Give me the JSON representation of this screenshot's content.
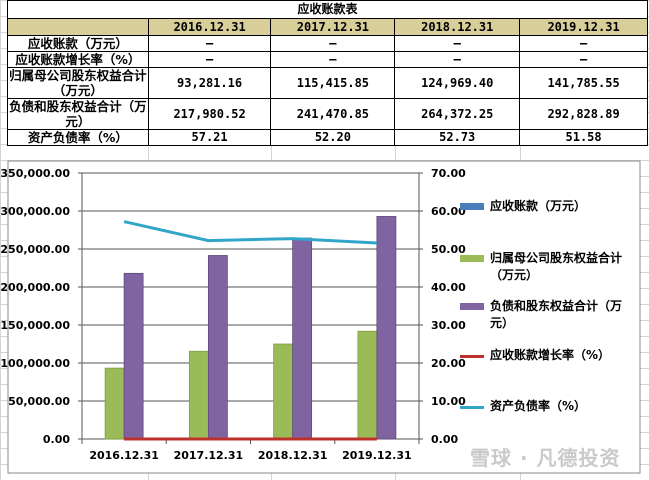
{
  "table": {
    "title": "应收账款表",
    "columns": [
      "",
      "2016.12.31",
      "2017.12.31",
      "2018.12.31",
      "2019.12.31"
    ],
    "rows": [
      {
        "label": "应收账款（万元）",
        "values": [
          "–",
          "–",
          "–",
          "–"
        ]
      },
      {
        "label": "应收账款增长率（%）",
        "values": [
          "–",
          "–",
          "–",
          "–"
        ]
      },
      {
        "label": "归属母公司股东权益合计（万元）",
        "values": [
          "93,281.16",
          "115,415.85",
          "124,969.40",
          "141,785.55"
        ]
      },
      {
        "label": "负债和股东权益合计（万元）",
        "values": [
          "217,980.52",
          "241,470.85",
          "264,372.25",
          "292,828.89"
        ]
      },
      {
        "label": "资产负债率（%）",
        "values": [
          "57.21",
          "52.20",
          "52.73",
          "51.58"
        ]
      }
    ]
  },
  "chart_data": {
    "type": "bar",
    "categories": [
      "2016.12.31",
      "2017.12.31",
      "2018.12.31",
      "2019.12.31"
    ],
    "ylim": [
      0,
      350000
    ],
    "y2lim": [
      0,
      70
    ],
    "yticks": [
      "0.00",
      "50,000.00",
      "100,000.00",
      "150,000.00",
      "200,000.00",
      "250,000.00",
      "300,000.00",
      "350,000.00"
    ],
    "y2ticks": [
      "0.00",
      "10.00",
      "20.00",
      "30.00",
      "40.00",
      "50.00",
      "60.00",
      "70.00"
    ],
    "grid": true,
    "legend_position": "right",
    "series": [
      {
        "name": "应收账款（万元）",
        "kind": "bar",
        "axis": "left",
        "color": "#4a7ebb",
        "values": [
          0,
          0,
          0,
          0
        ]
      },
      {
        "name": "归属母公司股东权益合计（万元）",
        "kind": "bar",
        "axis": "left",
        "color": "#9bbb59",
        "values": [
          93281.16,
          115415.85,
          124969.4,
          141785.55
        ]
      },
      {
        "name": "负债和股东权益合计（万元）",
        "kind": "bar",
        "axis": "left",
        "color": "#8064a2",
        "values": [
          217980.52,
          241470.85,
          264372.25,
          292828.89
        ]
      },
      {
        "name": "应收账款增长率（%）",
        "kind": "line",
        "axis": "right",
        "color": "#c0302b",
        "values": [
          0,
          0,
          0,
          0
        ]
      },
      {
        "name": "资产负债率（%）",
        "kind": "line",
        "axis": "right",
        "color": "#31a6c8",
        "values": [
          57.21,
          52.2,
          52.73,
          51.58
        ]
      }
    ]
  },
  "watermark": "雪球 · 凡德投资"
}
